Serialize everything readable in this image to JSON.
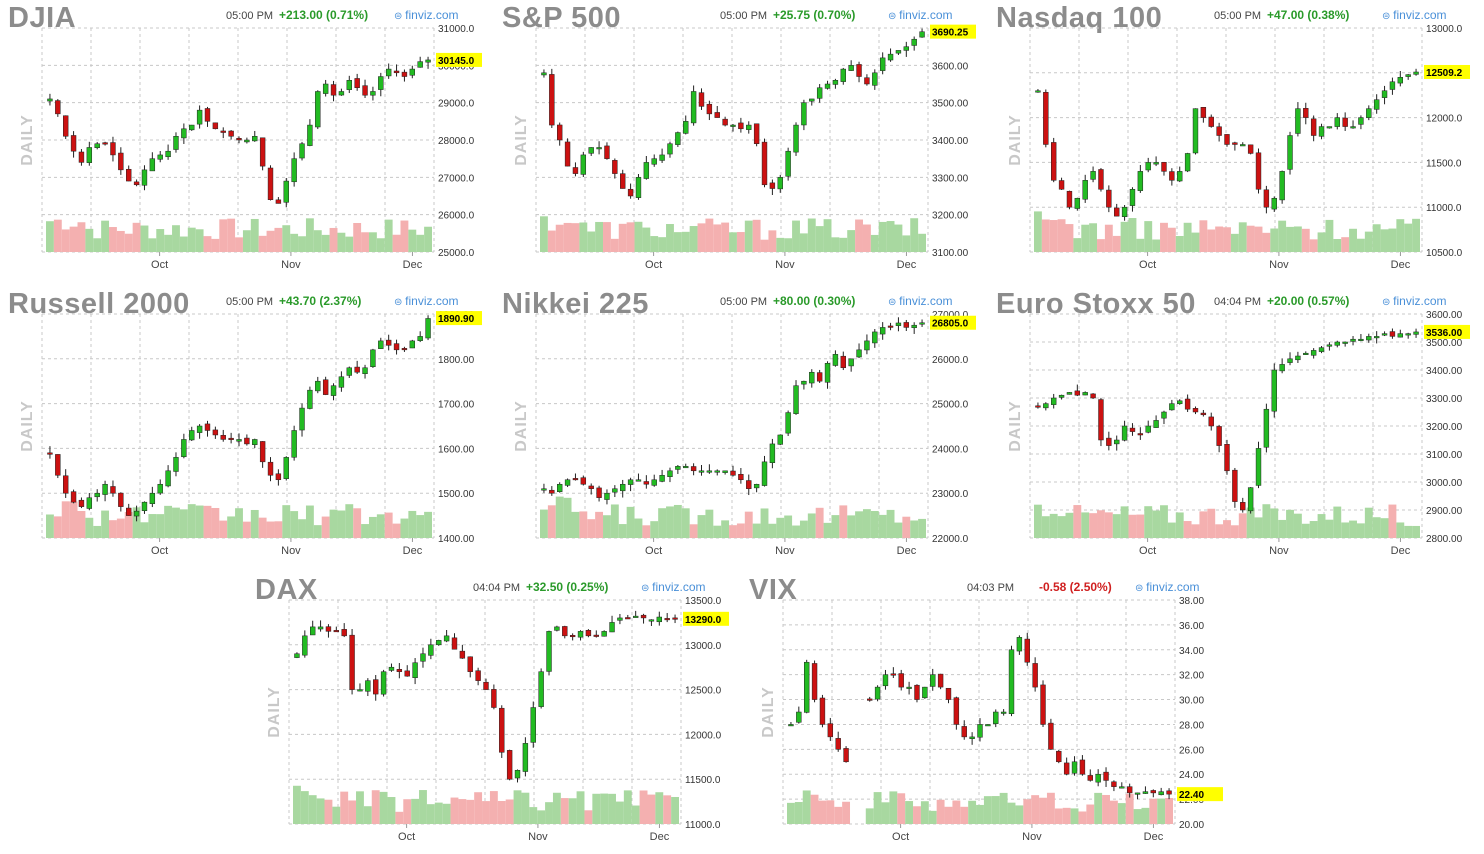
{
  "colors": {
    "up": "#22bb22",
    "down": "#cc1111",
    "vol_up": "#a8d8a0",
    "vol_down": "#f4b0b0",
    "grid": "#c8c8c8",
    "last_bg": "#ffff00"
  },
  "side_label": "DAILY",
  "brand": "finviz.com",
  "chart_data": [
    {
      "type": "candlestick",
      "title": "DJIA",
      "time": "05:00 PM",
      "change": "+213.00 (0.71%)",
      "direction": "up",
      "y_ticks": [
        "31000.0",
        "30000.0",
        "29000.0",
        "28000.0",
        "27000.0",
        "26000.0",
        "25000.0"
      ],
      "ylim": [
        25000,
        31000
      ],
      "months": [
        "Oct",
        "Nov",
        "Dec"
      ],
      "last_label": "30145.0",
      "last_value": 30145,
      "series": [
        29100,
        28700,
        28100,
        27700,
        27400,
        27800,
        27900,
        27900,
        27600,
        27200,
        26900,
        26800,
        27200,
        27500,
        27600,
        27700,
        28100,
        28300,
        28400,
        28800,
        28500,
        28300,
        28200,
        28100,
        28000,
        28000,
        28100,
        27300,
        26400,
        26300,
        26900,
        27500,
        27900,
        28400,
        29300,
        29500,
        29200,
        29300,
        29600,
        29400,
        29200,
        29300,
        29700,
        29900,
        29800,
        29700,
        29900,
        30100,
        30145
      ]
    },
    {
      "type": "candlestick",
      "title": "S&P 500",
      "time": "05:00 PM",
      "change": "+25.75 (0.70%)",
      "direction": "up",
      "y_ticks": [
        "3700.00",
        "3600.00",
        "3500.00",
        "3400.00",
        "3300.00",
        "3200.00",
        "3100.00"
      ],
      "ylim": [
        3100,
        3700
      ],
      "months": [
        "Oct",
        "Nov",
        "Dec"
      ],
      "last_label": "3690.25",
      "last_value": 3690.25,
      "series": [
        3580,
        3440,
        3400,
        3330,
        3310,
        3360,
        3380,
        3380,
        3350,
        3310,
        3270,
        3250,
        3300,
        3340,
        3350,
        3360,
        3390,
        3420,
        3450,
        3530,
        3490,
        3470,
        3460,
        3440,
        3440,
        3430,
        3440,
        3390,
        3280,
        3270,
        3300,
        3370,
        3440,
        3500,
        3510,
        3540,
        3550,
        3560,
        3590,
        3600,
        3570,
        3550,
        3580,
        3620,
        3630,
        3640,
        3650,
        3670,
        3690
      ]
    },
    {
      "type": "candlestick",
      "title": "Nasdaq 100",
      "time": "05:00 PM",
      "change": "+47.00 (0.38%)",
      "direction": "up",
      "y_ticks": [
        "13000.0",
        "12500.0",
        "12000.0",
        "11500.0",
        "11000.0",
        "10500.0"
      ],
      "ylim": [
        10500,
        13000
      ],
      "months": [
        "Oct",
        "Nov",
        "Dec"
      ],
      "last_label": "12509.2",
      "last_value": 12509.2,
      "series": [
        12300,
        11700,
        11300,
        11200,
        11000,
        11100,
        11300,
        11400,
        11200,
        11000,
        10900,
        11000,
        11200,
        11400,
        11500,
        11500,
        11400,
        11300,
        11400,
        11600,
        12100,
        12000,
        11900,
        11800,
        11700,
        11700,
        11700,
        11600,
        11200,
        11000,
        11100,
        11400,
        11800,
        12100,
        12000,
        11800,
        11900,
        11900,
        12000,
        11900,
        11900,
        12000,
        12100,
        12200,
        12300,
        12400,
        12450,
        12480,
        12509
      ]
    },
    {
      "type": "candlestick",
      "title": "Russell 2000",
      "time": "05:00 PM",
      "change": "+43.70 (2.37%)",
      "direction": "up",
      "y_ticks": [
        "1900.00",
        "1800.00",
        "1700.00",
        "1600.00",
        "1500.00",
        "1400.00"
      ],
      "ylim": [
        1400,
        1900
      ],
      "months": [
        "Oct",
        "Nov",
        "Dec"
      ],
      "last_label": "1890.90",
      "last_value": 1890.9,
      "series": [
        1590,
        1540,
        1500,
        1480,
        1470,
        1490,
        1500,
        1520,
        1500,
        1470,
        1450,
        1460,
        1480,
        1500,
        1520,
        1550,
        1580,
        1620,
        1640,
        1650,
        1640,
        1630,
        1620,
        1620,
        1620,
        1610,
        1620,
        1570,
        1540,
        1530,
        1580,
        1640,
        1690,
        1730,
        1750,
        1720,
        1740,
        1760,
        1780,
        1770,
        1780,
        1820,
        1840,
        1830,
        1820,
        1820,
        1840,
        1850,
        1890
      ]
    },
    {
      "type": "candlestick",
      "title": "Nikkei 225",
      "time": "05:00 PM",
      "change": "+80.00 (0.30%)",
      "direction": "up",
      "y_ticks": [
        "27000.0",
        "26000.0",
        "25000.0",
        "24000.0",
        "23000.0",
        "22000.0"
      ],
      "ylim": [
        22000,
        27000
      ],
      "months": [
        "Oct",
        "Nov",
        "Dec"
      ],
      "last_label": "26805.0",
      "last_value": 26805,
      "series": [
        23100,
        23000,
        23200,
        23300,
        23300,
        23200,
        23100,
        22900,
        23000,
        23100,
        23200,
        23300,
        23300,
        23200,
        23300,
        23400,
        23500,
        23600,
        23600,
        23500,
        23500,
        23500,
        23500,
        23500,
        23400,
        23300,
        23100,
        23200,
        23700,
        24100,
        24300,
        24800,
        25400,
        25500,
        25700,
        25500,
        25900,
        26100,
        25800,
        26000,
        26200,
        26400,
        26600,
        26700,
        26700,
        26800,
        26700,
        26750,
        26805
      ]
    },
    {
      "type": "candlestick",
      "title": "Euro Stoxx 50",
      "time": "04:04 PM",
      "change": "+20.00 (0.57%)",
      "direction": "up",
      "y_ticks": [
        "3600.00",
        "3500.00",
        "3400.00",
        "3300.00",
        "3200.00",
        "3100.00",
        "3000.00",
        "2900.00",
        "2800.00"
      ],
      "ylim": [
        2800,
        3600
      ],
      "months": [
        "Oct",
        "Nov",
        "Dec"
      ],
      "last_label": "3536.00",
      "last_value": 3536,
      "series": [
        3270,
        3280,
        3300,
        3310,
        3320,
        3310,
        3320,
        3300,
        3150,
        3130,
        3150,
        3200,
        3180,
        3170,
        3200,
        3220,
        3250,
        3280,
        3290,
        3260,
        3250,
        3240,
        3200,
        3130,
        3040,
        2930,
        2900,
        2980,
        3120,
        3260,
        3400,
        3420,
        3440,
        3450,
        3460,
        3470,
        3480,
        3490,
        3500,
        3500,
        3510,
        3510,
        3520,
        3520,
        3530,
        3520,
        3530,
        3530,
        3536
      ]
    },
    {
      "type": "candlestick",
      "title": "DAX",
      "time": "04:04 PM",
      "change": "+32.50 (0.25%)",
      "direction": "up",
      "y_ticks": [
        "13500.0",
        "13000.0",
        "12500.0",
        "12000.0",
        "11500.0",
        "11000.0"
      ],
      "ylim": [
        11000,
        13500
      ],
      "months": [
        "Oct",
        "Nov",
        "Dec"
      ],
      "last_label": "13290.0",
      "last_value": 13290,
      "series": [
        12900,
        13100,
        13200,
        13200,
        13150,
        13150,
        13100,
        12500,
        12500,
        12600,
        12450,
        12700,
        12750,
        12700,
        12650,
        12800,
        12900,
        13000,
        13050,
        13100,
        12950,
        12850,
        12700,
        12600,
        12500,
        12300,
        11800,
        11500,
        11600,
        11900,
        12300,
        12700,
        13150,
        13200,
        13100,
        13100,
        13150,
        13100,
        13100,
        13150,
        13250,
        13300,
        13300,
        13320,
        13300,
        13280,
        13310,
        13280,
        13290
      ]
    },
    {
      "type": "candlestick",
      "title": "VIX",
      "time": "04:03 PM",
      "change": "-0.58 (2.50%)",
      "direction": "down",
      "y_ticks": [
        "38.00",
        "36.00",
        "34.00",
        "32.00",
        "30.00",
        "28.00",
        "26.00",
        "24.00",
        "22.00",
        "20.00"
      ],
      "ylim": [
        20,
        38
      ],
      "months": [
        "Oct",
        "Nov",
        "Dec"
      ],
      "last_label": "22.40",
      "last_value": 22.4,
      "series": [
        28,
        29,
        33,
        30,
        28,
        27,
        26,
        25,
        null,
        null,
        30,
        31,
        32,
        32,
        31,
        31,
        30,
        31,
        32,
        31,
        30,
        28,
        27,
        27,
        28,
        28,
        29,
        29,
        34,
        35,
        33,
        31,
        28,
        26,
        25,
        24,
        25,
        24,
        23.5,
        24,
        23.5,
        23,
        23,
        22.5,
        22.5,
        22.6,
        22.5,
        22.6,
        22.4
      ]
    }
  ]
}
